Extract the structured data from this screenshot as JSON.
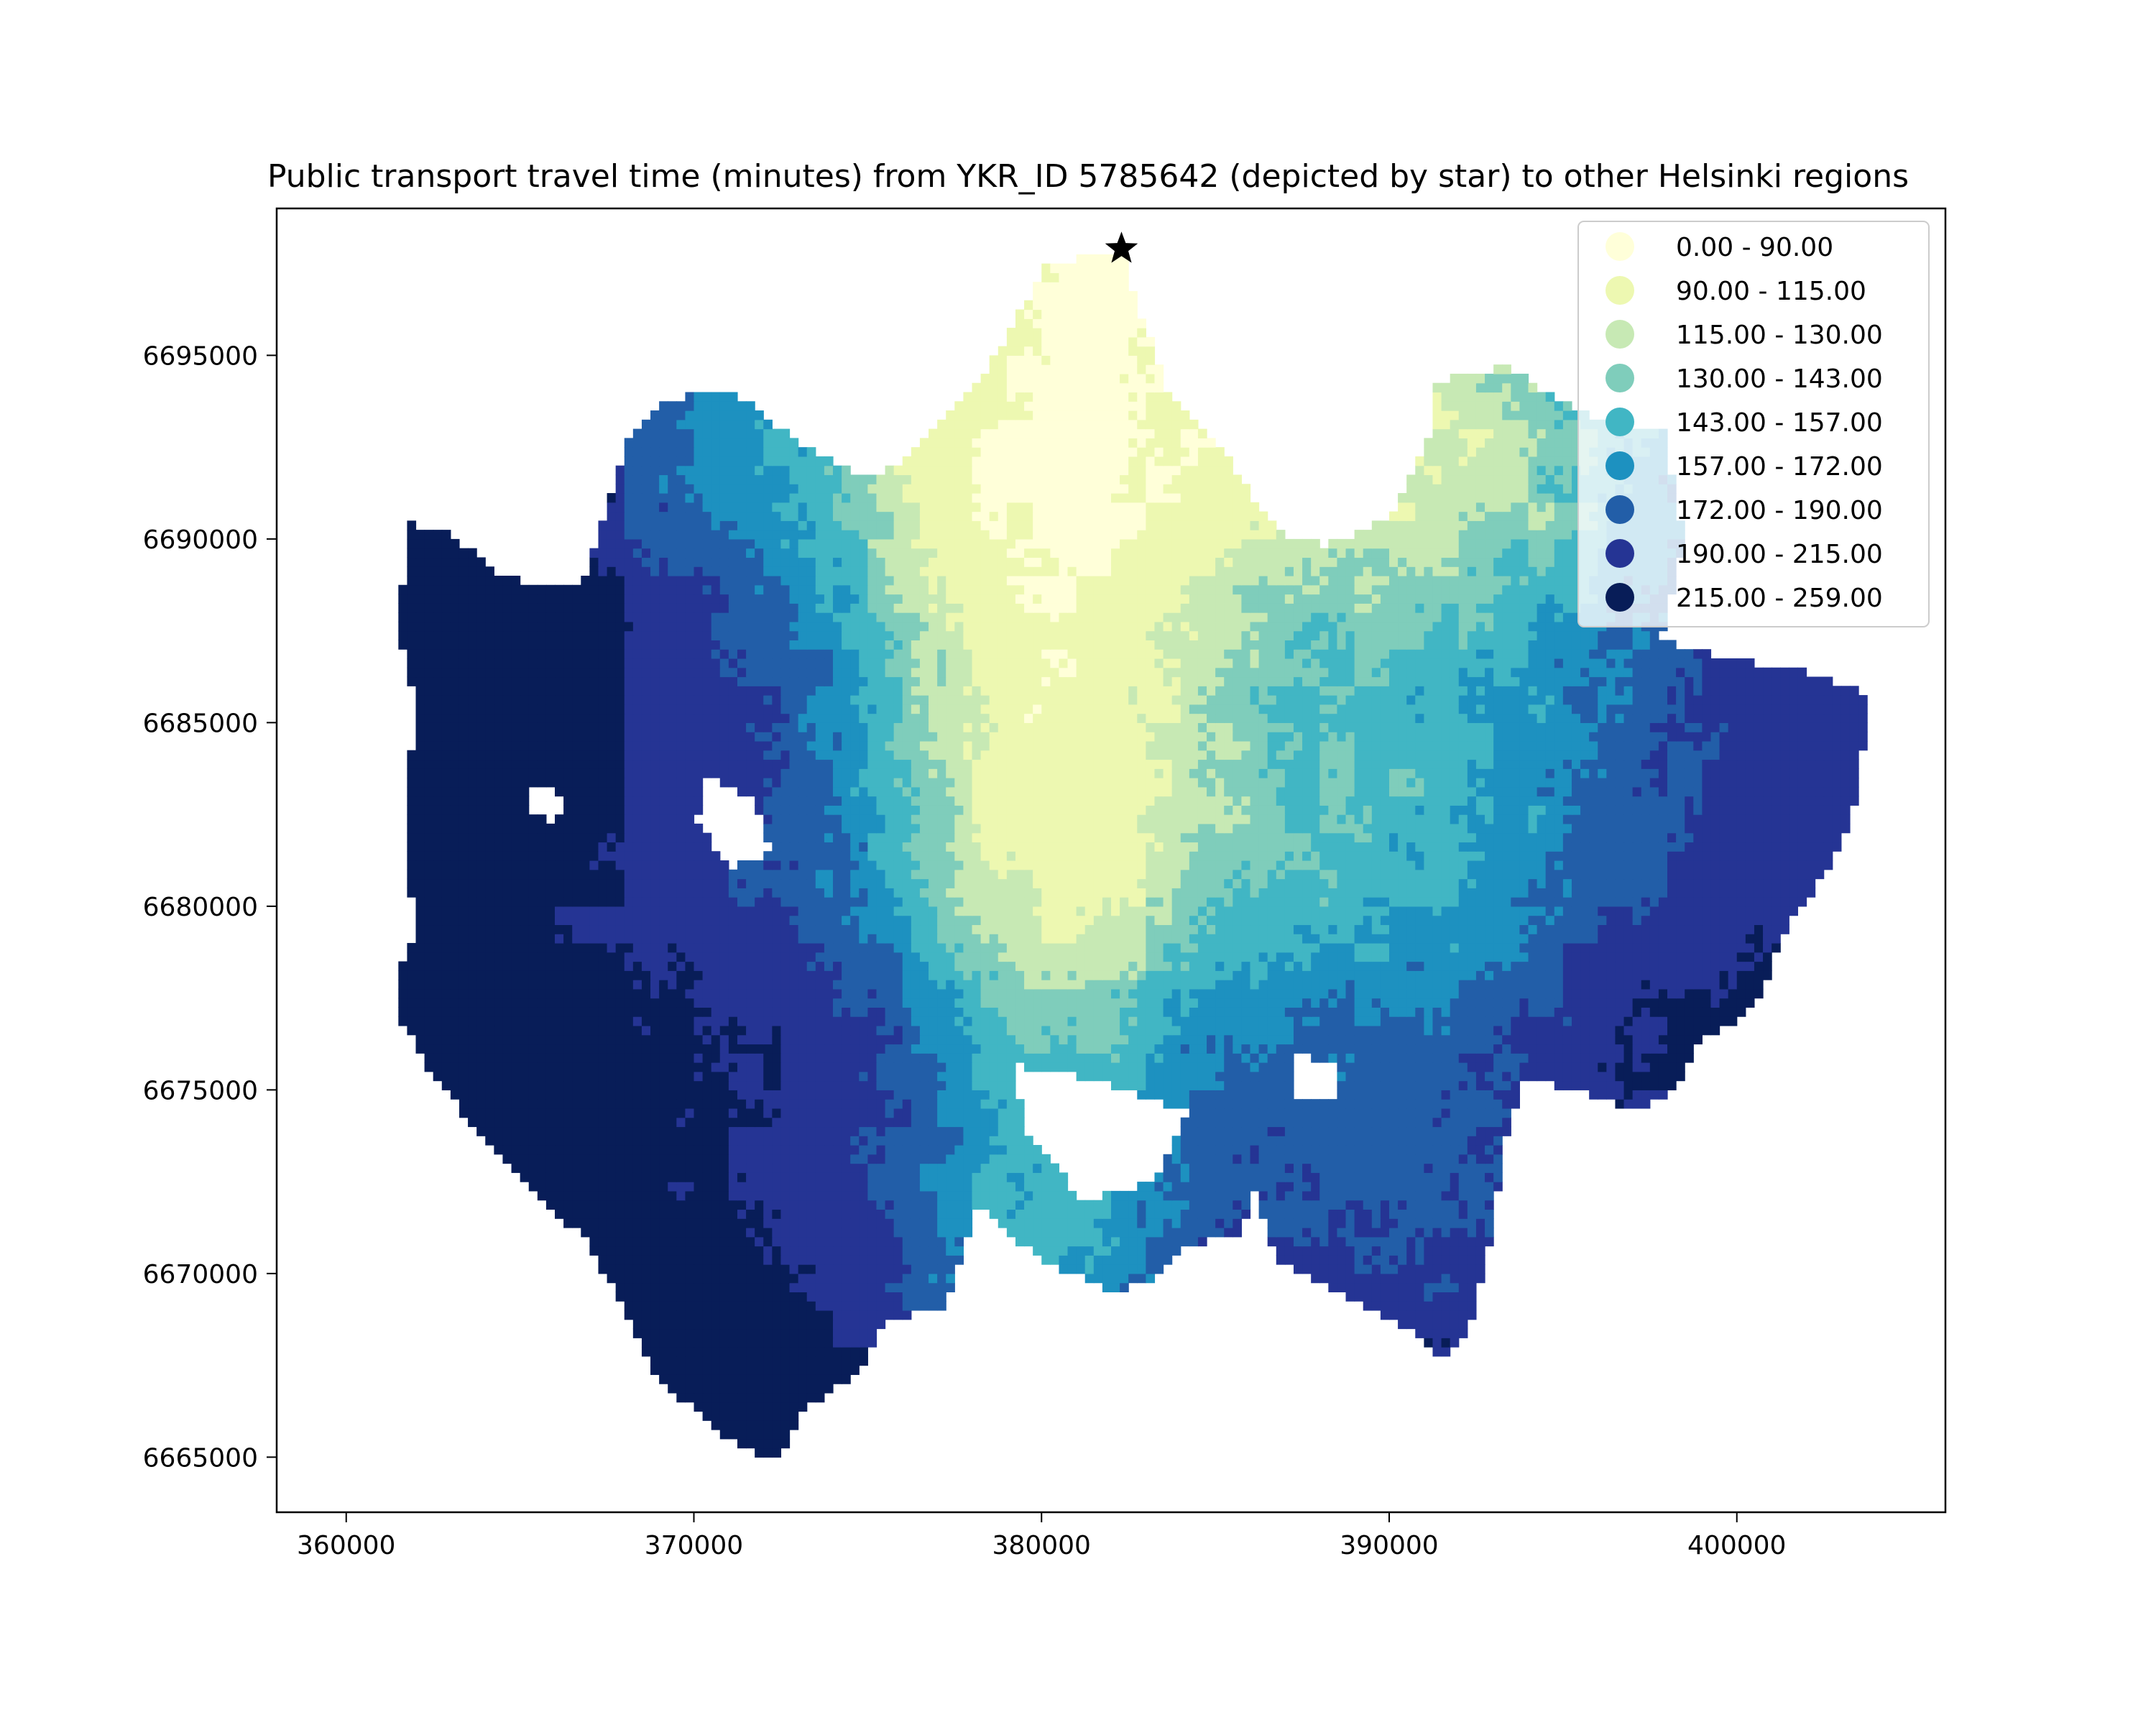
{
  "title": "Public transport  travel time (minutes) from YKR_ID 5785642 (depicted by star) to other Helsinki regions",
  "chart_data": {
    "type": "heatmap",
    "title": "Public transport  travel time (minutes) from YKR_ID 5785642 (depicted by star) to other Helsinki regions",
    "xlabel": "",
    "ylabel": "",
    "xlim": [
      358000,
      406000
    ],
    "ylim": [
      6663500,
      6699000
    ],
    "x_ticks": [
      "360000",
      "370000",
      "380000",
      "390000",
      "400000"
    ],
    "y_ticks": [
      "6665000",
      "6670000",
      "6675000",
      "6680000",
      "6685000",
      "6690000",
      "6695000"
    ],
    "x_tick_values": [
      360000,
      370000,
      380000,
      390000,
      400000
    ],
    "y_tick_values": [
      6665000,
      6670000,
      6675000,
      6680000,
      6685000,
      6690000,
      6695000
    ],
    "grid": false,
    "legend_position": "top-right",
    "origin": {
      "x": 382300,
      "y": 6697900,
      "marker": "star",
      "label": "YKR_ID 5785642"
    },
    "classes": [
      {
        "label": "0.00 - 90.00",
        "color": "#ffffd9"
      },
      {
        "label": "90.00 - 115.00",
        "color": "#edf8b1"
      },
      {
        "label": "115.00 - 130.00",
        "color": "#c7e9b4"
      },
      {
        "label": "130.00 - 143.00",
        "color": "#7fcdbb"
      },
      {
        "label": "143.00 - 157.00",
        "color": "#41b6c4"
      },
      {
        "label": "157.00 - 172.00",
        "color": "#1d91c0"
      },
      {
        "label": "172.00 - 190.00",
        "color": "#225ea8"
      },
      {
        "label": "190.00 - 215.00",
        "color": "#253494"
      },
      {
        "label": "215.00 - 259.00",
        "color": "#081d58"
      }
    ]
  }
}
